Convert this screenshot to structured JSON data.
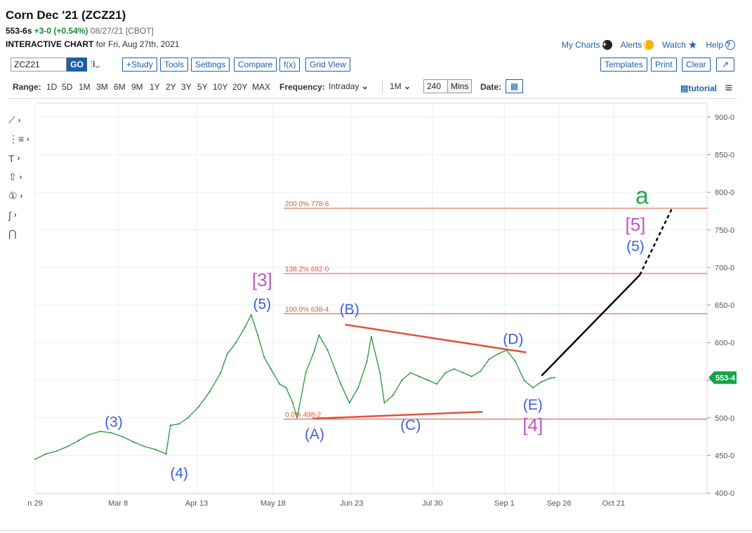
{
  "header": {
    "title": "Corn Dec '21 (ZCZ21)",
    "last": "553-6s",
    "change": "+3-0 (+0.54%)",
    "date_exchange": "08/27/21 [CBOT]",
    "subtitle_bold": "INTERACTIVE CHART",
    "subtitle_rest": "for Fri, Aug 27th, 2021"
  },
  "toplinks": {
    "my_charts": "My Charts",
    "alerts": "Alerts",
    "watch": "Watch",
    "help": "Help"
  },
  "toolbar": {
    "symbol": "ZCZ21",
    "go": "GO",
    "study": "+Study",
    "tools": "Tools",
    "settings": "Settings",
    "compare": "Compare",
    "fx": "f(x)",
    "grid_view": "Grid View",
    "templates": "Templates",
    "print": "Print",
    "clear": "Clear"
  },
  "rangebar": {
    "range_label": "Range:",
    "ranges": [
      "1D",
      "5D",
      "1M",
      "3M",
      "6M",
      "9M",
      "1Y",
      "2Y",
      "3Y",
      "5Y",
      "10Y",
      "20Y",
      "MAX"
    ],
    "frequency_label": "Frequency:",
    "frequency_value": "Intraday",
    "interval_value": "1M",
    "minutes_value": "240",
    "minutes_unit": "Mins",
    "date_label": "Date:",
    "tutorial": "tutorial"
  },
  "icons": {
    "left_tools": [
      "line-draw-icon",
      "fib-tool-icon",
      "text-tool-icon",
      "arrow-shape-icon",
      "counter-label-icon",
      "curve-draw-icon",
      "magnet-icon"
    ],
    "menu": "hamburger-menu-icon",
    "calendar": "calendar-icon"
  },
  "colors": {
    "brand": "#1f5fa8",
    "up": "#1a8a3a",
    "price_line": "#2ea043",
    "fib": "#e0533b",
    "wave_blue": "#3b5fd9",
    "wave_purple": "#c156c8",
    "wave_green": "#27a84a"
  },
  "chart_data": {
    "type": "line",
    "ylim": [
      400,
      900
    ],
    "y_ticks": [
      "900-0",
      "850-0",
      "800-0",
      "750-0",
      "700-0",
      "650-0",
      "600-0",
      "550-0",
      "500-0",
      "450-0",
      "400-0"
    ],
    "x_ticks": [
      "n 29",
      "Mar 8",
      "Apr 13",
      "May 18",
      "Jun 23",
      "Jul 30",
      "Sep 1",
      "Sep 26",
      "Oct 21"
    ],
    "last_price_label": "553-4",
    "last_price_value": 553.5,
    "series": [
      {
        "x_day_index": [
          0,
          5,
          10,
          15,
          20,
          25,
          30,
          35,
          40,
          45,
          50,
          55,
          60,
          62,
          66,
          70,
          75,
          80,
          85,
          88,
          92,
          96,
          99,
          102,
          105,
          108,
          112,
          115,
          118,
          120,
          124,
          128,
          130,
          134,
          138,
          140,
          144,
          148,
          152,
          154,
          158,
          160,
          164,
          168,
          172,
          176,
          180,
          184,
          188,
          192,
          196,
          200,
          204,
          208,
          212,
          216,
          220,
          224,
          228,
          232,
          236,
          238
        ],
        "values": [
          445,
          452,
          456,
          462,
          470,
          478,
          482,
          480,
          475,
          468,
          462,
          458,
          452,
          490,
          492,
          500,
          515,
          535,
          560,
          585,
          600,
          620,
          637,
          610,
          580,
          565,
          545,
          540,
          520,
          500,
          560,
          590,
          610,
          590,
          560,
          545,
          520,
          540,
          575,
          608,
          560,
          520,
          530,
          550,
          560,
          555,
          550,
          545,
          560,
          565,
          560,
          555,
          562,
          578,
          585,
          590,
          575,
          550,
          540,
          548,
          553,
          553.5
        ]
      }
    ],
    "fib_levels": [
      {
        "label": "200.0% 778-6",
        "value": 778.75
      },
      {
        "label": "138.2% 692-0",
        "value": 692
      },
      {
        "label": "100.0% 638-4",
        "value": 638.5
      },
      {
        "label": "0.0% 498-2",
        "value": 498.25
      }
    ],
    "annotations": [
      {
        "text": "(3)",
        "color": "blue",
        "x_day": 36,
        "y": 488
      },
      {
        "text": "(4)",
        "color": "blue",
        "x_day": 66,
        "y": 420
      },
      {
        "text": "[3]",
        "color": "purple",
        "x_day": 104,
        "y": 675
      },
      {
        "text": "(5)",
        "color": "blue",
        "x_day": 104,
        "y": 645
      },
      {
        "text": "(A)",
        "color": "blue",
        "x_day": 128,
        "y": 472
      },
      {
        "text": "(B)",
        "color": "blue",
        "x_day": 144,
        "y": 638
      },
      {
        "text": "(C)",
        "color": "blue",
        "x_day": 172,
        "y": 484
      },
      {
        "text": "(D)",
        "color": "blue",
        "x_day": 219,
        "y": 598
      },
      {
        "text": "(E)",
        "color": "blue",
        "x_day": 228,
        "y": 511
      },
      {
        "text": "[4]",
        "color": "purple",
        "x_day": 228,
        "y": 482
      },
      {
        "text": "[5]",
        "color": "purple",
        "x_day": 275,
        "y": 749
      },
      {
        "text": "(5)",
        "color": "blue",
        "x_day": 275,
        "y": 722
      },
      {
        "text": "a",
        "color": "green",
        "x_day": 278,
        "y": 785
      }
    ],
    "triangle_lines": [
      {
        "x_days": [
          142,
          225
        ],
        "values": [
          624,
          587
        ]
      },
      {
        "x_days": [
          127,
          205
        ],
        "values": [
          499,
          508
        ]
      }
    ],
    "projection": {
      "solid": {
        "x_days": [
          232,
          277
        ],
        "values": [
          556,
          690
        ]
      },
      "dashed": {
        "x_days": [
          277,
          292
        ],
        "values": [
          690,
          780
        ]
      }
    },
    "grid": true
  }
}
